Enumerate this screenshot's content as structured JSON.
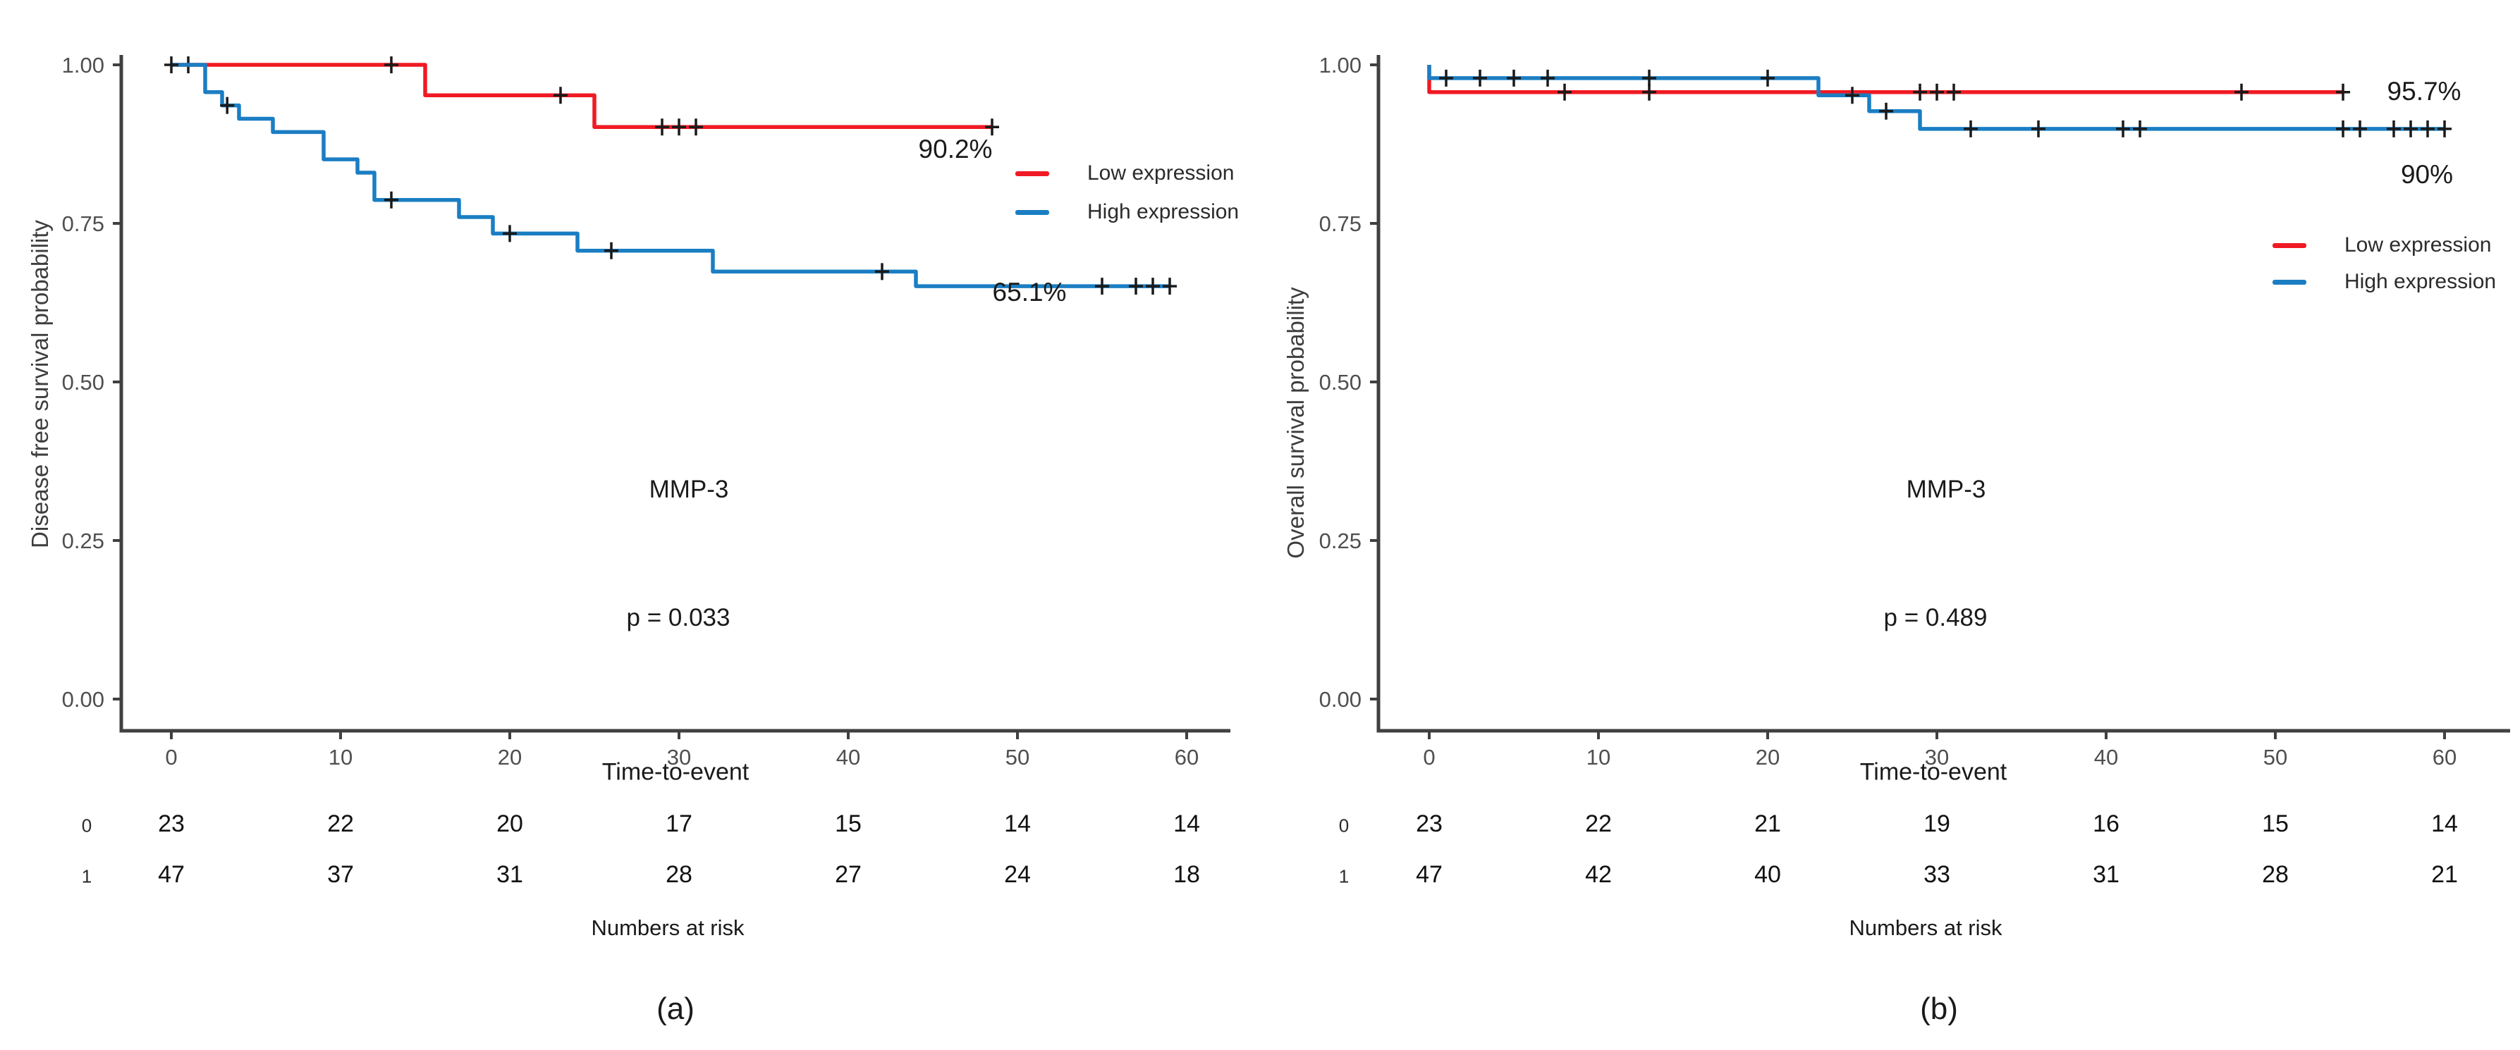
{
  "figure": {
    "background": "#ffffff",
    "axis_color": "#404040",
    "tick_text_color": "#4f4f4f",
    "censor_mark_color": "#1a1a1a"
  },
  "legend": {
    "low_label": "Low expression",
    "high_label": "High expression"
  },
  "chart_data": [
    {
      "id": "a",
      "type": "line",
      "subtype": "kaplan-meier-step",
      "caption": "(a)",
      "xlabel": "Time-to-event",
      "ylabel": "Disease free survival probability",
      "gene_annotation": "MMP-3",
      "p_value_annotation": "p = 0.033",
      "xlim": [
        0,
        60
      ],
      "ylim": [
        0,
        1
      ],
      "x_ticks": [
        0,
        10,
        20,
        30,
        40,
        50,
        60
      ],
      "y_ticks": [
        {
          "value": 1.0,
          "label": "1.00"
        },
        {
          "value": 0.75,
          "label": "0.75"
        },
        {
          "value": 0.5,
          "label": "0.50"
        },
        {
          "value": 0.25,
          "label": "0.25"
        },
        {
          "value": 0.0,
          "label": "0.00"
        }
      ],
      "legend_position": "right-inside",
      "grid": false,
      "series": [
        {
          "name": "Low expression",
          "color": "#F01A24",
          "end_label": "90.2%",
          "points": [
            [
              0,
              1
            ],
            [
              15,
              1
            ],
            [
              15,
              0.952
            ],
            [
              25,
              0.952
            ],
            [
              25,
              0.902
            ],
            [
              48.5,
              0.902
            ]
          ],
          "censor_marks": [
            [
              1,
              1
            ],
            [
              13,
              1
            ],
            [
              23,
              0.952
            ],
            [
              29,
              0.902
            ],
            [
              30,
              0.902
            ],
            [
              31,
              0.902
            ],
            [
              48.5,
              0.902
            ]
          ]
        },
        {
          "name": "High expression",
          "color": "#1B7EC3",
          "end_label": "65.1%",
          "points": [
            [
              0,
              1
            ],
            [
              2,
              1
            ],
            [
              2,
              0.957
            ],
            [
              3,
              0.957
            ],
            [
              3,
              0.936
            ],
            [
              4,
              0.936
            ],
            [
              4,
              0.915
            ],
            [
              6,
              0.915
            ],
            [
              6,
              0.894
            ],
            [
              9,
              0.894
            ],
            [
              9,
              0.851
            ],
            [
              11,
              0.851
            ],
            [
              11,
              0.83
            ],
            [
              12,
              0.83
            ],
            [
              12,
              0.787
            ],
            [
              17,
              0.787
            ],
            [
              17,
              0.76
            ],
            [
              19,
              0.76
            ],
            [
              19,
              0.734
            ],
            [
              24,
              0.734
            ],
            [
              24,
              0.707
            ],
            [
              32,
              0.707
            ],
            [
              32,
              0.674
            ],
            [
              44,
              0.674
            ],
            [
              44,
              0.651
            ],
            [
              59,
              0.651
            ]
          ],
          "censor_marks": [
            [
              0,
              1
            ],
            [
              3.3,
              0.936
            ],
            [
              13,
              0.787
            ],
            [
              20,
              0.734
            ],
            [
              26,
              0.707
            ],
            [
              42,
              0.674
            ],
            [
              55,
              0.651
            ],
            [
              57,
              0.651
            ],
            [
              58,
              0.651
            ],
            [
              59,
              0.651
            ]
          ]
        }
      ],
      "numbers_at_risk": {
        "title": "Numbers at risk",
        "strata_labels": [
          "0",
          "1"
        ],
        "time_points": [
          0,
          10,
          20,
          30,
          40,
          50,
          60
        ],
        "rows": [
          [
            23,
            22,
            20,
            17,
            15,
            14,
            14
          ],
          [
            47,
            37,
            31,
            28,
            27,
            24,
            18
          ]
        ]
      },
      "pos": {
        "cal": {
          "axis_x": 172,
          "axis_top": 78,
          "axis_bottom": 1037,
          "axis_right": 1745,
          "x0": 243,
          "ppu": 24.0,
          "y_top": 92,
          "pps": 900
        },
        "ylabel_center": [
          57,
          545
        ],
        "xlabel_center": [
          958,
          1096
        ],
        "gene_center": [
          977,
          695
        ],
        "p_center": [
          962,
          877
        ],
        "end_label_centers": [
          [
            1355,
            212
          ],
          [
            1460,
            415
          ]
        ],
        "legend_entries": [
          [
            1440,
            246
          ],
          [
            1440,
            301
          ]
        ],
        "strata_label_centers": [
          [
            123,
            1172
          ],
          [
            123,
            1244
          ]
        ],
        "risk_rows_y": [
          1172,
          1244
        ],
        "risk_title_center": [
          947,
          1317
        ],
        "caption_center": [
          958,
          1432
        ]
      }
    },
    {
      "id": "b",
      "type": "line",
      "subtype": "kaplan-meier-step",
      "caption": "(b)",
      "xlabel": "Time-to-event",
      "ylabel": "Overall survival probability",
      "gene_annotation": "MMP-3",
      "p_value_annotation": "p = 0.489",
      "xlim": [
        0,
        60
      ],
      "ylim": [
        0,
        1
      ],
      "x_ticks": [
        0,
        10,
        20,
        30,
        40,
        50,
        60
      ],
      "y_ticks": [
        {
          "value": 1.0,
          "label": "1.00"
        },
        {
          "value": 0.75,
          "label": "0.75"
        },
        {
          "value": 0.5,
          "label": "0.50"
        },
        {
          "value": 0.25,
          "label": "0.25"
        },
        {
          "value": 0.0,
          "label": "0.00"
        }
      ],
      "legend_position": "right-inside",
      "grid": false,
      "series": [
        {
          "name": "Low expression",
          "color": "#F01A24",
          "end_label": "95.7%",
          "points": [
            [
              0,
              1
            ],
            [
              0,
              0.957
            ],
            [
              54,
              0.957
            ]
          ],
          "censor_marks": [
            [
              8,
              0.957
            ],
            [
              13,
              0.957
            ],
            [
              29,
              0.957
            ],
            [
              30,
              0.957
            ],
            [
              31,
              0.957
            ],
            [
              48,
              0.957
            ],
            [
              54,
              0.957
            ]
          ]
        },
        {
          "name": "High expression",
          "color": "#1B7EC3",
          "end_label": "90%",
          "points": [
            [
              0,
              1
            ],
            [
              0,
              0.979
            ],
            [
              23,
              0.979
            ],
            [
              23,
              0.952
            ],
            [
              26,
              0.952
            ],
            [
              26,
              0.927
            ],
            [
              29,
              0.927
            ],
            [
              29,
              0.899
            ],
            [
              60,
              0.899
            ]
          ],
          "censor_marks": [
            [
              1,
              0.979
            ],
            [
              3,
              0.979
            ],
            [
              5,
              0.979
            ],
            [
              7,
              0.979
            ],
            [
              13,
              0.979
            ],
            [
              20,
              0.979
            ],
            [
              25,
              0.952
            ],
            [
              27,
              0.927
            ],
            [
              32,
              0.899
            ],
            [
              36,
              0.899
            ],
            [
              41,
              0.899
            ],
            [
              42,
              0.899
            ],
            [
              54,
              0.899
            ],
            [
              55,
              0.899
            ],
            [
              57,
              0.899
            ],
            [
              58,
              0.899
            ],
            [
              59,
              0.899
            ],
            [
              60,
              0.899
            ]
          ]
        }
      ],
      "numbers_at_risk": {
        "title": "Numbers at risk",
        "strata_labels": [
          "0",
          "1"
        ],
        "time_points": [
          0,
          10,
          20,
          30,
          40,
          50,
          60
        ],
        "rows": [
          [
            23,
            22,
            21,
            19,
            16,
            15,
            14
          ],
          [
            47,
            42,
            40,
            33,
            31,
            28,
            21
          ]
        ]
      },
      "pos": {
        "cal": {
          "axis_x": 1955,
          "axis_top": 78,
          "axis_bottom": 1037,
          "axis_right": 3560,
          "x0": 2027,
          "ppu": 24.0,
          "y_top": 92,
          "pps": 900
        },
        "ylabel_center": [
          1838,
          600
        ],
        "xlabel_center": [
          2742,
          1096
        ],
        "gene_center": [
          2760,
          695
        ],
        "p_center": [
          2745,
          877
        ],
        "end_label_centers": [
          [
            3438,
            130
          ],
          [
            3442,
            248
          ]
        ],
        "legend_entries": [
          [
            3223,
            348
          ],
          [
            3223,
            400
          ]
        ],
        "strata_label_centers": [
          [
            1906,
            1172
          ],
          [
            1906,
            1244
          ]
        ],
        "risk_rows_y": [
          1172,
          1244
        ],
        "risk_title_center": [
          2731,
          1317
        ],
        "caption_center": [
          2750,
          1432
        ]
      }
    }
  ]
}
